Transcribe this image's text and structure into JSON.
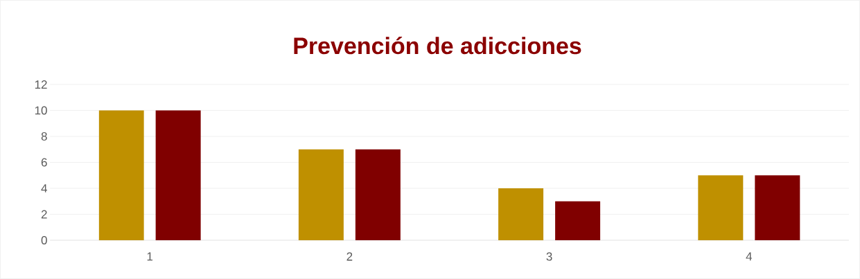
{
  "chart_data": {
    "type": "bar",
    "title": "Prevención de adicciones",
    "categories": [
      "1",
      "2",
      "3",
      "4"
    ],
    "series": [
      {
        "color": "#bf9000",
        "values": [
          10,
          7,
          4,
          5
        ]
      },
      {
        "color": "#800000",
        "values": [
          10,
          7,
          3,
          5
        ]
      }
    ],
    "ylim": [
      0,
      12
    ],
    "yticks": [
      0,
      2,
      4,
      6,
      8,
      10,
      12
    ],
    "grid": "y"
  }
}
